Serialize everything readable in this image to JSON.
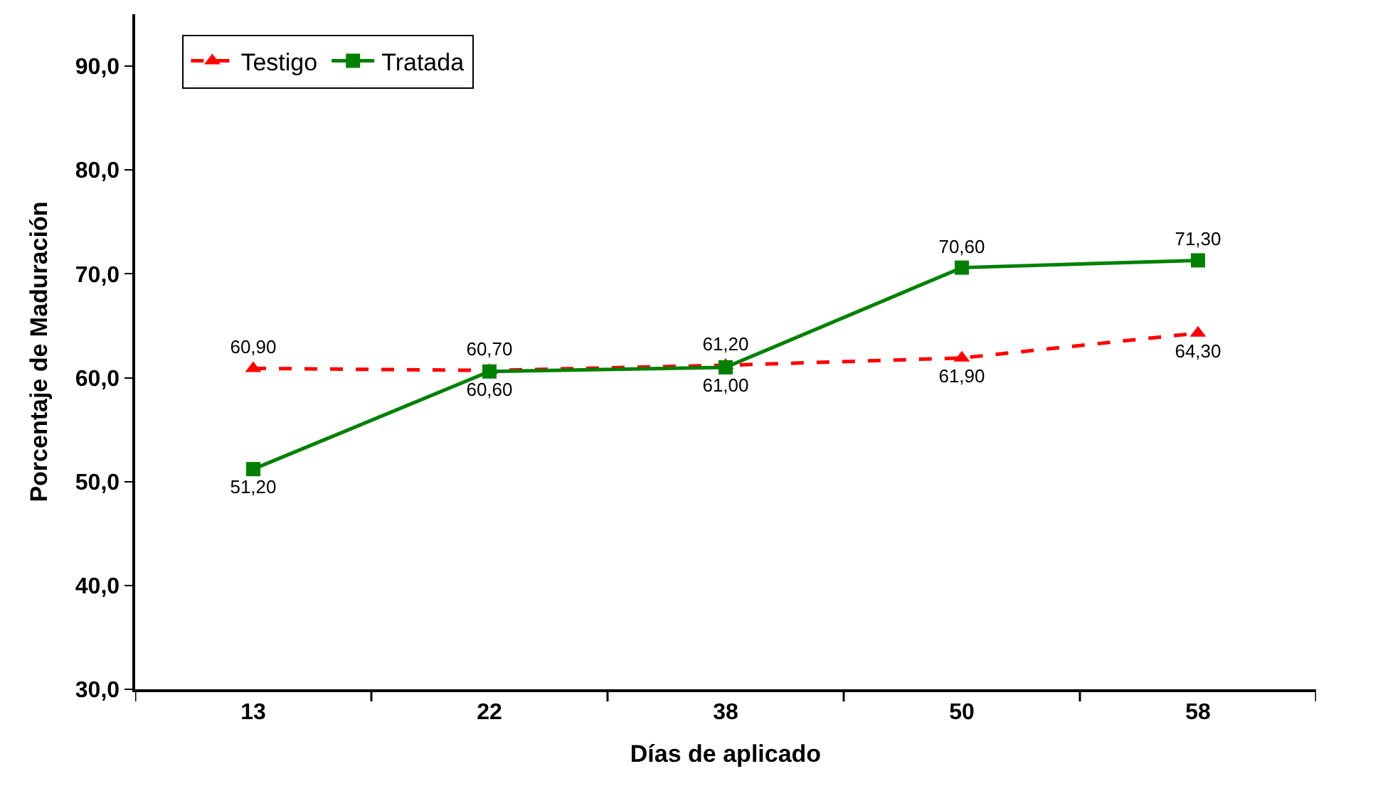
{
  "chart_data": {
    "type": "line",
    "xlabel": "Días de aplicado",
    "ylabel": "Porcentaje de Maduración",
    "categories": [
      "13",
      "22",
      "38",
      "50",
      "58"
    ],
    "series": [
      {
        "name": "Testigo",
        "color": "#ff0000",
        "marker": "triangle",
        "line_style": "dashed",
        "values": [
          60.9,
          60.7,
          61.2,
          61.9,
          64.3
        ],
        "value_labels": [
          "60,90",
          "60,70",
          "61,20",
          "61,90",
          "64,30"
        ]
      },
      {
        "name": "Tratada",
        "color": "#008000",
        "marker": "square",
        "line_style": "solid",
        "values": [
          51.2,
          60.6,
          61.0,
          70.6,
          71.3
        ],
        "value_labels": [
          "51,20",
          "60,60",
          "61,00",
          "70,60",
          "71,30"
        ]
      }
    ],
    "ylim": [
      30,
      95
    ],
    "yticks": [
      {
        "value": 30,
        "label": "30,0"
      },
      {
        "value": 40,
        "label": "40,0"
      },
      {
        "value": 50,
        "label": "50,0"
      },
      {
        "value": 60,
        "label": "60,0"
      },
      {
        "value": 70,
        "label": "70,0"
      },
      {
        "value": 80,
        "label": "80,0"
      },
      {
        "value": 90,
        "label": "90,0"
      }
    ],
    "legend": "top left"
  }
}
